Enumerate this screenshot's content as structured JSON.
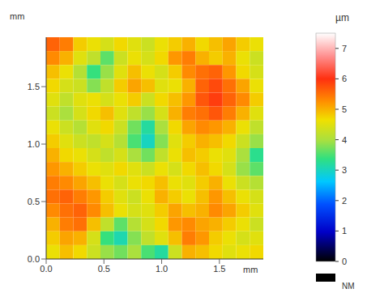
{
  "chart_data": {
    "type": "heatmap",
    "x_unit_label": "mm",
    "y_unit_label": "mm",
    "xlim": [
      0,
      1.88
    ],
    "ylim": [
      0,
      1.93
    ],
    "xticks": [
      {
        "value": 0,
        "label": "0.0"
      },
      0.5,
      {
        "value": 1,
        "label": "1.0"
      },
      1.5
    ],
    "yticks": [
      {
        "value": 0,
        "label": "0.0"
      },
      0.5,
      {
        "value": 1,
        "label": "1.0"
      },
      1.5
    ],
    "cells_top_to_bottom": [
      [
        5.6,
        5.4,
        4.8,
        4.6,
        4.4,
        4.7,
        4.5,
        4.3,
        4.6,
        4.8,
        5.0,
        4.7,
        4.9,
        5.1,
        4.8,
        4.6
      ],
      [
        5.3,
        5.0,
        4.5,
        4.2,
        3.6,
        4.3,
        4.6,
        4.4,
        4.7,
        5.2,
        5.4,
        5.0,
        4.8,
        5.0,
        4.6,
        4.3
      ],
      [
        4.9,
        4.6,
        4.1,
        3.4,
        3.9,
        4.5,
        4.9,
        4.6,
        4.4,
        4.8,
        5.3,
        5.5,
        5.6,
        5.2,
        4.7,
        4.4
      ],
      [
        4.7,
        4.4,
        4.3,
        3.8,
        4.2,
        4.8,
        5.1,
        4.9,
        4.5,
        4.6,
        5.0,
        5.6,
        5.8,
        5.5,
        5.1,
        4.6
      ],
      [
        4.5,
        4.2,
        4.5,
        4.6,
        4.4,
        4.6,
        4.8,
        4.3,
        4.7,
        4.9,
        5.2,
        5.7,
        5.9,
        5.6,
        5.3,
        4.8
      ],
      [
        4.3,
        4.0,
        4.4,
        4.7,
        4.9,
        4.5,
        4.2,
        3.9,
        4.4,
        5.0,
        5.4,
        5.5,
        5.7,
        5.4,
        5.0,
        4.5
      ],
      [
        4.6,
        4.3,
        4.1,
        4.5,
        4.7,
        4.3,
        3.7,
        3.2,
        4.0,
        4.7,
        5.1,
        5.3,
        5.2,
        5.0,
        4.6,
        4.2
      ],
      [
        4.8,
        4.5,
        4.3,
        4.2,
        4.4,
        4.1,
        3.5,
        3.0,
        3.8,
        4.5,
        4.8,
        5.0,
        4.9,
        4.7,
        4.3,
        3.9
      ],
      [
        5.0,
        4.7,
        4.6,
        4.4,
        4.2,
        4.4,
        4.0,
        3.7,
        4.2,
        4.6,
        4.9,
        4.8,
        4.6,
        4.5,
        4.0,
        3.3
      ],
      [
        5.2,
        5.0,
        4.8,
        4.6,
        4.5,
        4.7,
        4.5,
        4.3,
        4.6,
        4.4,
        4.7,
        4.9,
        4.7,
        4.4,
        3.9,
        3.6
      ],
      [
        5.4,
        5.3,
        5.1,
        4.9,
        4.6,
        4.4,
        4.6,
        4.7,
        4.9,
        4.6,
        4.5,
        4.8,
        5.0,
        4.6,
        4.3,
        4.1
      ],
      [
        5.5,
        5.6,
        5.4,
        5.2,
        4.8,
        4.5,
        4.3,
        4.6,
        5.0,
        4.8,
        4.6,
        4.9,
        5.2,
        4.9,
        4.6,
        4.4
      ],
      [
        5.3,
        5.5,
        5.6,
        5.3,
        4.9,
        4.6,
        4.4,
        4.5,
        4.8,
        5.1,
        4.9,
        5.0,
        5.3,
        5.1,
        4.8,
        4.5
      ],
      [
        5.0,
        5.4,
        5.5,
        4.9,
        4.2,
        3.6,
        4.1,
        4.4,
        4.7,
        5.2,
        5.3,
        5.1,
        5.0,
        4.8,
        4.6,
        4.3
      ],
      [
        4.8,
        5.1,
        5.0,
        4.4,
        3.4,
        3.1,
        3.8,
        4.2,
        4.5,
        4.9,
        5.4,
        5.2,
        4.8,
        4.6,
        4.4,
        4.5
      ],
      [
        4.6,
        4.9,
        4.7,
        4.3,
        3.9,
        3.7,
        4.0,
        3.5,
        3.2,
        4.3,
        5.0,
        4.9,
        4.7,
        4.5,
        4.6,
        4.7
      ]
    ],
    "colorbar_label": "µm",
    "colorbar_range": [
      0,
      7.5
    ],
    "colorbar_ticks": [
      0,
      1,
      2,
      3,
      4,
      5,
      6,
      7
    ],
    "no_data_label": "NM"
  }
}
